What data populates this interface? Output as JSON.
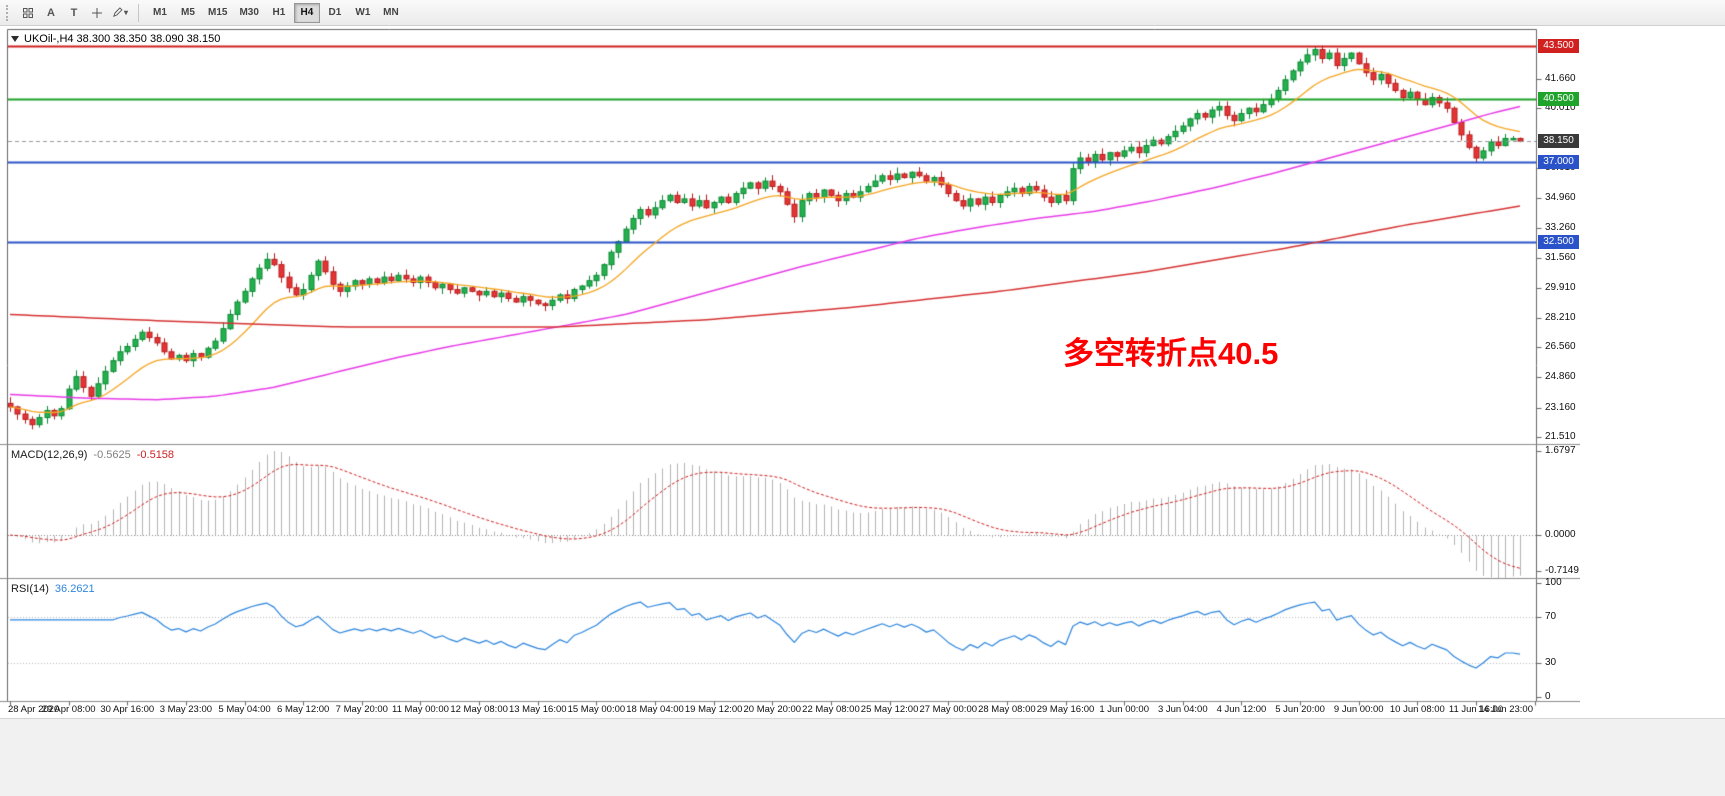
{
  "toolbar": {
    "tool_a": "A",
    "tool_t": "T",
    "caret": "▾",
    "timeframes": [
      "M1",
      "M5",
      "M15",
      "M30",
      "H1",
      "H4",
      "D1",
      "W1",
      "MN"
    ],
    "active_timeframe": "H4"
  },
  "chart": {
    "title": "UKOil-,H4 38.300 38.350 38.090 38.150",
    "symbol": "UKOil-",
    "period": "H4",
    "ohlc": {
      "open": "38.300",
      "high": "38.350",
      "low": "38.090",
      "close": "38.150"
    },
    "bid": 38.15,
    "annotation": {
      "text": "多空转折点40.5",
      "color": "#ff0000"
    }
  },
  "price_scale": {
    "ticks": [
      "41.660",
      "40.010",
      "36.610",
      "34.960",
      "33.260",
      "31.560",
      "29.910",
      "28.210",
      "26.560",
      "24.860",
      "23.160",
      "21.510"
    ],
    "badges": [
      {
        "label": "43.500",
        "value": 43.5,
        "color": "#d02020",
        "name": "resistance-price-badge"
      },
      {
        "label": "40.500",
        "value": 40.5,
        "color": "#1fa32a",
        "name": "pivot-price-badge"
      },
      {
        "label": "38.150",
        "value": 38.15,
        "color": "#3a3a3a",
        "name": "current-price-badge"
      },
      {
        "label": "37.000",
        "value": 37.0,
        "color": "#2b53c9",
        "name": "support-price-badge"
      },
      {
        "label": "32.500",
        "value": 32.5,
        "color": "#2b53c9",
        "name": "support2-price-badge"
      }
    ]
  },
  "macd": {
    "name": "MACD(12,26,9)",
    "value_main": "-0.5625",
    "value_signal": "-0.5158",
    "scale_labels": [
      "1.6797",
      "0.0000",
      "-0.7149"
    ],
    "scale_max": 1.6797,
    "scale_min": -0.7149
  },
  "rsi": {
    "name": "RSI(14)",
    "value": "36.2621",
    "period": 14,
    "levels": [
      70,
      30
    ],
    "scale_labels": [
      "100",
      "70",
      "30",
      "0"
    ]
  },
  "chart_data": {
    "type": "candlestick",
    "symbol": "UKOil-",
    "timeframe": "H4",
    "visible_price_range": [
      21.17,
      44.4
    ],
    "bars_per_label": 8,
    "x_labels": [
      "28 Apr 2020",
      "29 Apr 08:00",
      "30 Apr 16:00",
      "3 May 23:00",
      "5 May 04:00",
      "6 May 12:00",
      "7 May 20:00",
      "11 May 00:00",
      "12 May 08:00",
      "13 May 16:00",
      "15 May 00:00",
      "18 May 04:00",
      "19 May 12:00",
      "20 May 20:00",
      "22 May 08:00",
      "25 May 12:00",
      "27 May 00:00",
      "28 May 08:00",
      "29 May 16:00",
      "1 Jun 00:00",
      "3 Jun 04:00",
      "4 Jun 12:00",
      "5 Jun 20:00",
      "9 Jun 00:00",
      "10 Jun 08:00",
      "11 Jun 16:00",
      "14 Jun 23:00"
    ],
    "closes": [
      23.2,
      22.8,
      22.5,
      22.2,
      22.6,
      23.0,
      22.7,
      23.1,
      24.2,
      24.9,
      24.3,
      23.8,
      24.5,
      25.2,
      25.8,
      26.3,
      26.6,
      27.0,
      27.4,
      27.1,
      26.8,
      26.3,
      25.9,
      26.1,
      25.8,
      26.2,
      26.0,
      26.5,
      26.9,
      27.6,
      28.4,
      29.1,
      29.7,
      30.4,
      31.0,
      31.5,
      31.2,
      30.5,
      29.9,
      29.5,
      29.8,
      30.6,
      31.4,
      30.8,
      30.1,
      29.7,
      30.0,
      30.3,
      30.1,
      30.4,
      30.2,
      30.5,
      30.3,
      30.6,
      30.4,
      30.2,
      30.5,
      30.2,
      29.9,
      30.1,
      29.8,
      29.6,
      29.9,
      29.7,
      29.5,
      29.7,
      29.4,
      29.6,
      29.3,
      29.1,
      29.4,
      29.2,
      29.0,
      28.9,
      29.2,
      29.5,
      29.3,
      29.8,
      30.0,
      30.3,
      30.6,
      31.2,
      31.9,
      32.5,
      33.2,
      33.8,
      34.3,
      34.0,
      34.4,
      34.8,
      35.1,
      34.7,
      34.9,
      34.5,
      34.8,
      34.4,
      34.7,
      35.0,
      34.7,
      35.2,
      35.5,
      35.8,
      35.5,
      35.9,
      35.6,
      35.3,
      34.6,
      33.9,
      34.8,
      35.2,
      35.0,
      35.4,
      35.1,
      34.8,
      35.2,
      35.0,
      35.3,
      35.6,
      35.9,
      36.2,
      36.0,
      36.3,
      36.1,
      36.4,
      36.2,
      35.9,
      36.1,
      35.7,
      35.2,
      34.8,
      34.5,
      34.9,
      34.6,
      35.0,
      34.7,
      35.1,
      35.3,
      35.5,
      35.2,
      35.6,
      35.4,
      35.0,
      34.7,
      35.1,
      34.8,
      36.6,
      37.2,
      37.0,
      37.4,
      37.1,
      37.5,
      37.3,
      37.6,
      37.8,
      37.5,
      37.9,
      38.2,
      38.0,
      38.4,
      38.7,
      39.0,
      39.4,
      39.7,
      39.5,
      39.9,
      40.1,
      39.6,
      39.3,
      39.7,
      40.0,
      39.8,
      40.2,
      40.5,
      41.0,
      41.6,
      42.1,
      42.6,
      43.0,
      43.3,
      42.8,
      43.1,
      42.4,
      42.8,
      43.1,
      42.5,
      42.0,
      41.6,
      41.9,
      41.4,
      41.0,
      40.6,
      40.9,
      40.5,
      40.2,
      40.6,
      40.3,
      40.0,
      39.2,
      38.5,
      37.8,
      37.2,
      37.6,
      38.1,
      37.9,
      38.3,
      38.3,
      38.15
    ],
    "last_ohlc": [
      38.3,
      38.35,
      38.09,
      38.15
    ],
    "wick_max": 0.32,
    "h_lines": [
      {
        "value": 43.5,
        "color": "#d02020",
        "width": 2
      },
      {
        "value": 40.5,
        "color": "#1fa32a",
        "width": 2
      },
      {
        "value": 37.0,
        "color": "#2b53c9",
        "width": 2
      },
      {
        "value": 32.5,
        "color": "#2b53c9",
        "width": 2
      }
    ],
    "moving_averages": [
      {
        "name": "ma-fast",
        "color": "#f5a623",
        "width": 1.3,
        "period": 13
      },
      {
        "name": "ma-medium",
        "color": "#e83ce8",
        "width": 1.5,
        "anchors": [
          [
            0,
            23.9
          ],
          [
            10,
            23.7
          ],
          [
            20,
            23.6
          ],
          [
            28,
            23.8
          ],
          [
            36,
            24.3
          ],
          [
            44,
            25.1
          ],
          [
            52,
            25.9
          ],
          [
            60,
            26.6
          ],
          [
            68,
            27.2
          ],
          [
            76,
            27.8
          ],
          [
            84,
            28.4
          ],
          [
            92,
            29.3
          ],
          [
            100,
            30.2
          ],
          [
            108,
            31.1
          ],
          [
            116,
            31.9
          ],
          [
            124,
            32.7
          ],
          [
            132,
            33.3
          ],
          [
            140,
            33.8
          ],
          [
            148,
            34.2
          ],
          [
            156,
            34.8
          ],
          [
            164,
            35.5
          ],
          [
            172,
            36.3
          ],
          [
            180,
            37.2
          ],
          [
            188,
            38.1
          ],
          [
            196,
            39.0
          ],
          [
            202,
            39.7
          ],
          [
            206,
            40.1
          ]
        ]
      },
      {
        "name": "ma-slow",
        "color": "#d63333",
        "width": 1.5,
        "anchors": [
          [
            0,
            28.4
          ],
          [
            20,
            28.05
          ],
          [
            45,
            27.7
          ],
          [
            75,
            27.7
          ],
          [
            95,
            28.1
          ],
          [
            115,
            28.8
          ],
          [
            135,
            29.7
          ],
          [
            155,
            30.8
          ],
          [
            175,
            32.2
          ],
          [
            190,
            33.4
          ],
          [
            206,
            34.5
          ]
        ]
      }
    ]
  },
  "colors": {
    "up": "#23b14d",
    "up_border": "#0e8a36",
    "down": "#e43535",
    "down_border": "#b81d1d",
    "macd_hist": "#b4b4b4",
    "macd_signal": "#d02020",
    "rsi_line": "#2e86de"
  }
}
